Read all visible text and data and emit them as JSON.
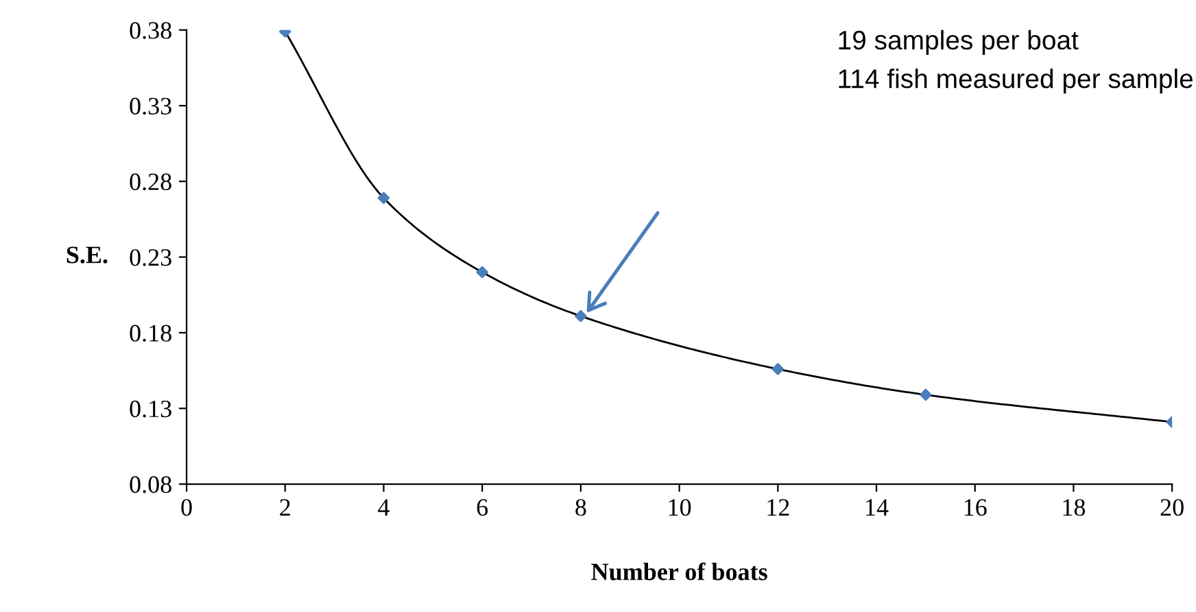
{
  "chart_data": {
    "type": "line",
    "xlabel": "Number of boats",
    "ylabel": "S.E.",
    "annotations": [
      "19 samples per boat",
      "114 fish measured per sample"
    ],
    "x": [
      2,
      4,
      6,
      8,
      12,
      15,
      20
    ],
    "series": [
      {
        "color": "#000000",
        "marker": "none",
        "values": [
          0.379,
          0.269,
          0.22,
          0.191,
          0.156,
          0.139,
          0.121
        ]
      },
      {
        "type": "scatter",
        "color": "#4a7ebb",
        "marker": "diamond",
        "values": [
          0.379,
          0.269,
          0.22,
          0.191,
          0.156,
          0.139,
          0.121
        ]
      }
    ],
    "xlim": [
      0,
      20
    ],
    "xticks": [
      0,
      2,
      4,
      6,
      8,
      10,
      12,
      14,
      16,
      18,
      20
    ],
    "ylim": [
      0.08,
      0.38
    ],
    "yticks": [
      0.08,
      0.13,
      0.18,
      0.23,
      0.28,
      0.33,
      0.38
    ],
    "grid": false,
    "legend": false
  }
}
